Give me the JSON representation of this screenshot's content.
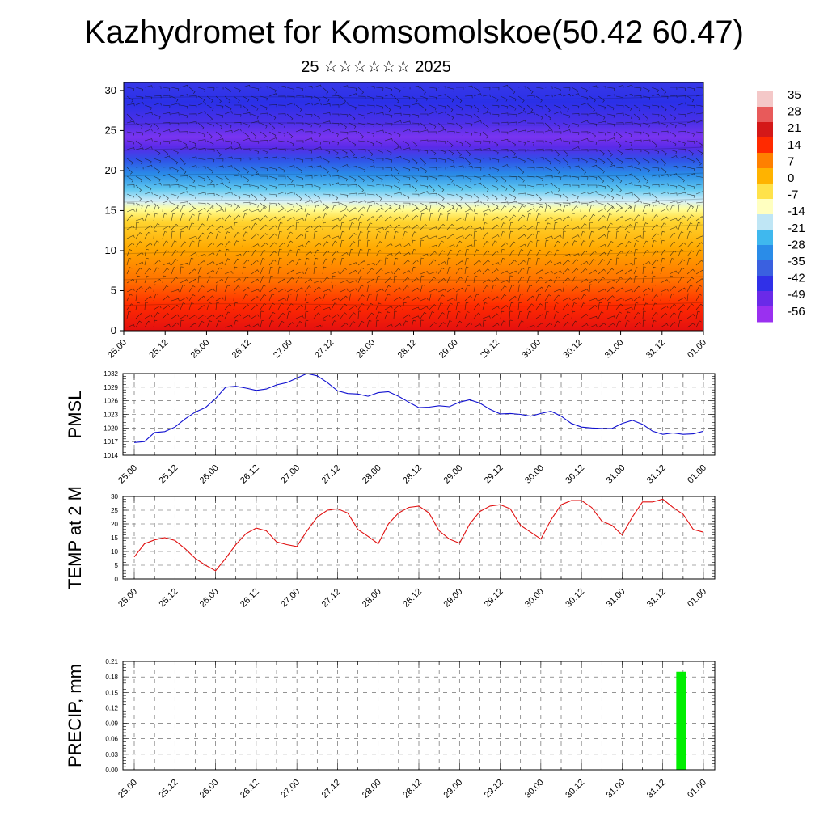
{
  "title": "Kazhydromet for Komsomolskoe(50.42 60.47)",
  "subtitle": "25 ☆☆☆☆☆☆ 2025",
  "time_labels": [
    "25.00",
    "25.12",
    "26.00",
    "26.12",
    "27.00",
    "27.12",
    "28.00",
    "28.12",
    "29.00",
    "29.12",
    "30.00",
    "30.12",
    "31.00",
    "31.12",
    "01.00"
  ],
  "colorbar": {
    "labels": [
      "35",
      "28",
      "21",
      "14",
      "7",
      "0",
      "-7",
      "-14",
      "-21",
      "-28",
      "-35",
      "-42",
      "-49",
      "-56"
    ],
    "colors": [
      "#f4c8c8",
      "#e85a5a",
      "#d41818",
      "#ff2a00",
      "#ff8000",
      "#ffb300",
      "#ffe24a",
      "#ffffc0",
      "#bfe6f5",
      "#3fb8ee",
      "#2a8ce8",
      "#3a60e0",
      "#3030e8",
      "#6a2ae8",
      "#9a30f0"
    ]
  },
  "chart_data": [
    {
      "type": "heatmap",
      "title": "",
      "y_ticks": [
        "0",
        "5",
        "10",
        "15",
        "20",
        "25",
        "30"
      ],
      "ylim": [
        0,
        31
      ],
      "colorbar_range": [
        -56,
        35
      ],
      "description_levels": [
        {
          "level": 0,
          "value": 20
        },
        {
          "level": 10,
          "value": 10
        },
        {
          "level": 15,
          "value": -7
        },
        {
          "level": 20,
          "value": -35
        },
        {
          "level": 23.5,
          "value": -56
        },
        {
          "level": 30,
          "value": -49
        }
      ]
    },
    {
      "type": "line",
      "ylabel": "PMSL",
      "y_ticks": [
        "1014",
        "1017",
        "1020",
        "1023",
        "1026",
        "1029",
        "1032"
      ],
      "ylim": [
        1014,
        1032
      ],
      "color": "#1010d0",
      "values": [
        1016.8,
        1017.0,
        1019.0,
        1019.2,
        1020.2,
        1022.0,
        1023.5,
        1024.5,
        1026.5,
        1029.0,
        1029.2,
        1028.8,
        1028.3,
        1028.6,
        1029.5,
        1030.0,
        1031.0,
        1032.0,
        1031.5,
        1030.0,
        1028.2,
        1027.6,
        1027.5,
        1027.0,
        1027.8,
        1028.0,
        1027.0,
        1025.7,
        1024.5,
        1024.6,
        1024.9,
        1024.7,
        1025.7,
        1026.2,
        1025.5,
        1024.1,
        1023.1,
        1023.2,
        1023.0,
        1022.6,
        1023.2,
        1023.7,
        1022.6,
        1021.0,
        1020.2,
        1020.0,
        1019.9,
        1019.9,
        1021.0,
        1021.7,
        1020.8,
        1019.3,
        1018.6,
        1018.9,
        1018.6,
        1018.7,
        1019.3
      ]
    },
    {
      "type": "line",
      "ylabel": "TEMP at 2 M",
      "y_ticks": [
        "0",
        "5",
        "10",
        "15",
        "20",
        "25",
        "30"
      ],
      "ylim": [
        0,
        30
      ],
      "color": "#e01010",
      "values": [
        8.0,
        12.8,
        14.2,
        15.0,
        14.0,
        11.0,
        7.5,
        5.0,
        3.0,
        7.5,
        12.5,
        16.5,
        18.5,
        17.5,
        13.5,
        12.5,
        11.8,
        17.5,
        22.5,
        25.0,
        25.5,
        24.0,
        18.0,
        15.5,
        12.8,
        20.0,
        24.0,
        26.0,
        26.5,
        24.0,
        17.5,
        14.5,
        13.0,
        20.0,
        24.5,
        26.5,
        27.0,
        25.5,
        19.5,
        17.0,
        14.5,
        21.5,
        27.0,
        28.5,
        28.5,
        26.0,
        21.0,
        19.5,
        16.0,
        22.5,
        28.0,
        28.0,
        29.0,
        26.0,
        23.5,
        18.0,
        17.0
      ]
    },
    {
      "type": "bar",
      "ylabel": "PRECIP, mm",
      "y_ticks": [
        "0.00",
        "0.03",
        "0.06",
        "0.09",
        "0.12",
        "0.15",
        "0.18",
        "0.21"
      ],
      "ylim": [
        0,
        0.21
      ],
      "color": "#00ee00",
      "bars": [
        {
          "x": 13.45,
          "value": 0.19
        }
      ]
    }
  ]
}
